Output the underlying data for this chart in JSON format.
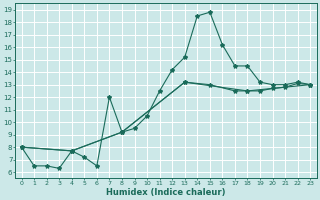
{
  "title": "",
  "xlabel": "Humidex (Indice chaleur)",
  "bg_color": "#cce8e8",
  "grid_color": "#aad4d4",
  "line_color": "#1a6b5a",
  "xlim": [
    -0.5,
    23.5
  ],
  "ylim": [
    5.5,
    19.5
  ],
  "xticks": [
    0,
    1,
    2,
    3,
    4,
    5,
    6,
    7,
    8,
    9,
    10,
    11,
    12,
    13,
    14,
    15,
    16,
    17,
    18,
    19,
    20,
    21,
    22,
    23
  ],
  "yticks": [
    6,
    7,
    8,
    9,
    10,
    11,
    12,
    13,
    14,
    15,
    16,
    17,
    18,
    19
  ],
  "line1_x": [
    0,
    1,
    2,
    3,
    4,
    5,
    6,
    7,
    8,
    9,
    10,
    11,
    12,
    13,
    14,
    15,
    16,
    17,
    18,
    19,
    20,
    21,
    22,
    23
  ],
  "line1_y": [
    8.0,
    6.5,
    6.5,
    6.3,
    7.7,
    7.2,
    6.5,
    12.0,
    9.2,
    9.5,
    10.5,
    12.5,
    14.2,
    15.2,
    18.5,
    18.8,
    16.2,
    14.5,
    14.5,
    13.2,
    13.0,
    13.0,
    13.2,
    13.0
  ],
  "line2_x": [
    0,
    4,
    8,
    13,
    15,
    17,
    18,
    19,
    20,
    21,
    22,
    23
  ],
  "line2_y": [
    8.0,
    7.7,
    9.2,
    13.2,
    13.0,
    12.5,
    12.5,
    12.5,
    12.7,
    12.8,
    13.1,
    13.0
  ],
  "line3_x": [
    0,
    4,
    8,
    13,
    18,
    23
  ],
  "line3_y": [
    8.0,
    7.7,
    9.2,
    13.2,
    12.5,
    13.0
  ]
}
